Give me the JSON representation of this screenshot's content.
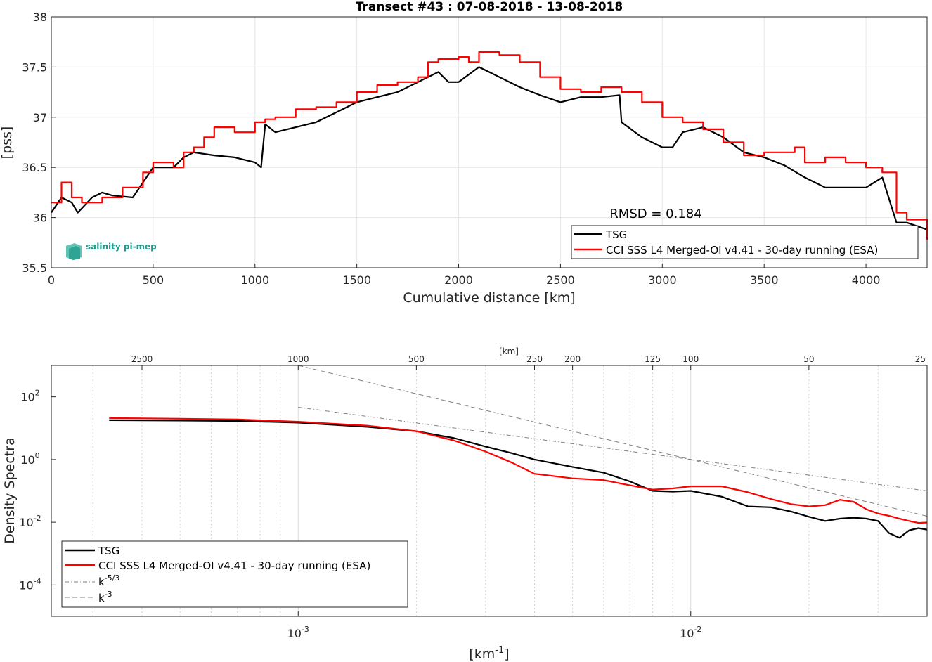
{
  "chart_data": [
    {
      "type": "line",
      "title": "Transect #43 : 07-08-2018 - 13-08-2018",
      "xlabel": "Cumulative distance [km]",
      "ylabel": "[pss]",
      "xlim": [
        0,
        4300
      ],
      "ylim": [
        35.5,
        38
      ],
      "xticks": [
        0,
        500,
        1000,
        1500,
        2000,
        2500,
        3000,
        3500,
        4000
      ],
      "yticks": [
        35.5,
        36,
        36.5,
        37,
        37.5,
        38
      ],
      "grid": true,
      "legend_position": "bottom-right",
      "annotation": "RMSD = 0.184",
      "logo": "salinity pi-mep",
      "series": [
        {
          "name": "TSG",
          "color": "#000000",
          "x": [
            0,
            50,
            100,
            130,
            200,
            250,
            300,
            400,
            450,
            500,
            550,
            600,
            650,
            700,
            800,
            900,
            1000,
            1030,
            1050,
            1100,
            1200,
            1300,
            1400,
            1500,
            1600,
            1700,
            1800,
            1900,
            1950,
            2000,
            2100,
            2150,
            2200,
            2300,
            2400,
            2500,
            2600,
            2700,
            2790,
            2800,
            2900,
            3000,
            3050,
            3100,
            3200,
            3300,
            3400,
            3500,
            3600,
            3700,
            3800,
            3900,
            4000,
            4080,
            4150,
            4200,
            4300
          ],
          "y": [
            36.05,
            36.2,
            36.15,
            36.05,
            36.2,
            36.25,
            36.22,
            36.2,
            36.35,
            36.5,
            36.5,
            36.5,
            36.6,
            36.65,
            36.62,
            36.6,
            36.55,
            36.5,
            36.93,
            36.85,
            36.9,
            36.95,
            37.05,
            37.15,
            37.2,
            37.25,
            37.35,
            37.45,
            37.35,
            37.35,
            37.5,
            37.45,
            37.4,
            37.3,
            37.22,
            37.15,
            37.2,
            37.2,
            37.22,
            36.95,
            36.8,
            36.7,
            36.7,
            36.85,
            36.9,
            36.8,
            36.65,
            36.6,
            36.52,
            36.4,
            36.3,
            36.3,
            36.3,
            36.4,
            35.95,
            35.95,
            35.88
          ]
        },
        {
          "name": "CCI SSS L4 Merged-OI v4.41 - 30-day running (ESA)",
          "color": "#ff0000",
          "x": [
            0,
            50,
            100,
            150,
            250,
            350,
            450,
            500,
            550,
            600,
            650,
            700,
            750,
            800,
            900,
            1000,
            1050,
            1100,
            1200,
            1300,
            1400,
            1500,
            1600,
            1700,
            1800,
            1850,
            1900,
            2000,
            2050,
            2100,
            2200,
            2300,
            2400,
            2500,
            2600,
            2700,
            2800,
            2900,
            3000,
            3100,
            3200,
            3300,
            3400,
            3500,
            3600,
            3650,
            3700,
            3800,
            3900,
            4000,
            4080,
            4150,
            4200,
            4250,
            4300
          ],
          "y": [
            36.15,
            36.35,
            36.2,
            36.15,
            36.2,
            36.3,
            36.45,
            36.55,
            36.55,
            36.5,
            36.65,
            36.7,
            36.8,
            36.9,
            36.85,
            36.95,
            36.98,
            37.0,
            37.08,
            37.1,
            37.15,
            37.25,
            37.32,
            37.35,
            37.4,
            37.55,
            37.58,
            37.6,
            37.55,
            37.65,
            37.62,
            37.55,
            37.4,
            37.28,
            37.25,
            37.3,
            37.25,
            37.15,
            37.0,
            36.95,
            36.88,
            36.75,
            36.62,
            36.65,
            36.65,
            36.7,
            36.55,
            36.6,
            36.55,
            36.5,
            36.45,
            36.05,
            35.98,
            35.98,
            35.78
          ]
        }
      ]
    },
    {
      "type": "line",
      "title": "",
      "xlabel": "[km-1]",
      "xlabel_parts": {
        "base": "[km",
        "sup": "-1",
        "tail": "]"
      },
      "ylabel": "Density Spectra",
      "x_scale": "log",
      "y_scale": "log",
      "xlim": [
        0.000235,
        0.04
      ],
      "ylim": [
        1e-05,
        1000
      ],
      "xticks": [
        {
          "value": 0.001,
          "base": "10",
          "exp": "-3"
        },
        {
          "value": 0.01,
          "base": "10",
          "exp": "-2"
        }
      ],
      "yticks": [
        {
          "value": 0.0001,
          "base": "10",
          "exp": "-4"
        },
        {
          "value": 0.01,
          "base": "10",
          "exp": "-2"
        },
        {
          "value": 1,
          "base": "10",
          "exp": "0"
        },
        {
          "value": 100,
          "base": "10",
          "exp": "2"
        }
      ],
      "top_axis_label": "[km]",
      "top_ticks": [
        {
          "label": "2500",
          "value": 0.0004
        },
        {
          "label": "1000",
          "value": 0.001
        },
        {
          "label": "500",
          "value": 0.002
        },
        {
          "label": "250",
          "value": 0.004
        },
        {
          "label": "200",
          "value": 0.005
        },
        {
          "label": "125",
          "value": 0.008
        },
        {
          "label": "100",
          "value": 0.01
        },
        {
          "label": "50",
          "value": 0.02
        },
        {
          "label": "25",
          "value": 0.04
        }
      ],
      "grid": true,
      "legend_position": "bottom-left",
      "series": [
        {
          "name": "TSG",
          "color": "#000000",
          "x": [
            0.00033,
            0.0005,
            0.0007,
            0.001,
            0.0015,
            0.002,
            0.0025,
            0.003,
            0.0035,
            0.004,
            0.005,
            0.006,
            0.007,
            0.008,
            0.009,
            0.01,
            0.012,
            0.014,
            0.016,
            0.018,
            0.02,
            0.022,
            0.024,
            0.026,
            0.028,
            0.03,
            0.032,
            0.034,
            0.036,
            0.038,
            0.04
          ],
          "y": [
            18,
            17.5,
            17,
            15,
            11,
            8,
            4.8,
            2.6,
            1.6,
            1.0,
            0.58,
            0.38,
            0.2,
            0.1,
            0.095,
            0.1,
            0.065,
            0.032,
            0.03,
            0.022,
            0.015,
            0.011,
            0.013,
            0.014,
            0.013,
            0.011,
            0.0045,
            0.0032,
            0.0055,
            0.0065,
            0.0058
          ]
        },
        {
          "name": "CCI SSS L4 Merged-OI v4.41 - 30-day running (ESA)",
          "color": "#ff0000",
          "x": [
            0.00033,
            0.0005,
            0.0007,
            0.001,
            0.0015,
            0.002,
            0.0025,
            0.003,
            0.0035,
            0.004,
            0.005,
            0.006,
            0.007,
            0.008,
            0.009,
            0.01,
            0.012,
            0.014,
            0.016,
            0.018,
            0.02,
            0.022,
            0.024,
            0.026,
            0.028,
            0.03,
            0.032,
            0.034,
            0.036,
            0.038,
            0.04
          ],
          "y": [
            21,
            20,
            19,
            16,
            12,
            8,
            4,
            1.8,
            0.8,
            0.35,
            0.25,
            0.22,
            0.15,
            0.11,
            0.12,
            0.14,
            0.14,
            0.09,
            0.055,
            0.038,
            0.032,
            0.035,
            0.052,
            0.045,
            0.026,
            0.019,
            0.016,
            0.013,
            0.011,
            0.0095,
            0.0098
          ]
        },
        {
          "name": "k^-5/3",
          "name_parts": {
            "base": "k",
            "sup": "-5/3"
          },
          "color": "#808080",
          "dash": "dashdot",
          "x": [
            0.001,
            0.04
          ],
          "y": [
            46.4,
            0.1
          ]
        },
        {
          "name": "k^-3",
          "name_parts": {
            "base": "k",
            "sup": "-3"
          },
          "color": "#808080",
          "dash": "dashed",
          "x": [
            0.001,
            0.04
          ],
          "y": [
            1000,
            0.0156
          ]
        }
      ]
    }
  ]
}
